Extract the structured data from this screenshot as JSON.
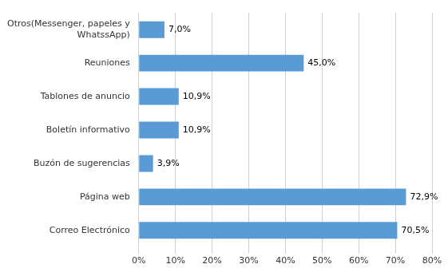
{
  "chart_data": {
    "type": "bar",
    "orientation": "horizontal",
    "categories": [
      "Correo Electrónico",
      "Página web",
      "Buzón de sugerencias",
      "Boletín informativo",
      "Tablones de anuncio",
      "Reuniones",
      "Otros(Messenger, papeles y\nWhatssApp)"
    ],
    "values": [
      70.5,
      72.9,
      3.9,
      10.9,
      10.9,
      45.0,
      7.0
    ],
    "value_labels": [
      "70,5%",
      "72,9%",
      "3,9%",
      "10,9%",
      "10,9%",
      "45,0%",
      "7,0%"
    ],
    "data_labels": true,
    "color": "#5b9bd5",
    "xlim": [
      0,
      80
    ],
    "xticks": [
      {
        "value": 0,
        "label": "0%"
      },
      {
        "value": 10,
        "label": "10%"
      },
      {
        "value": 20,
        "label": "20%"
      },
      {
        "value": 30,
        "label": "30%"
      },
      {
        "value": 40,
        "label": "40%"
      },
      {
        "value": 50,
        "label": "50%"
      },
      {
        "value": 60,
        "label": "60%"
      },
      {
        "value": 70,
        "label": "70%"
      },
      {
        "value": 80,
        "label": "80%"
      }
    ],
    "grid": true
  }
}
